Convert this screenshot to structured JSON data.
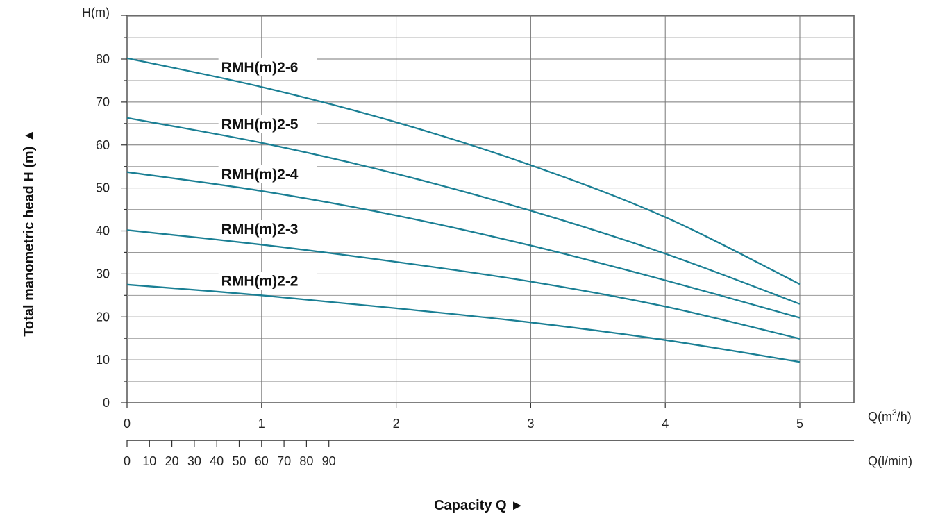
{
  "chart_data": {
    "type": "line",
    "ylabel": "Total manometric head H (m) ▲",
    "y_unit": "H(m)",
    "ylim": [
      0,
      90
    ],
    "y_ticks": [
      0,
      10,
      20,
      30,
      40,
      50,
      60,
      70,
      80
    ],
    "xlabel": "Capacity Q ►",
    "x_unit_m3h_prefix": "Q(m",
    "x_unit_m3h_sup": "3",
    "x_unit_m3h_suffix": "/h)",
    "x_ticks_m3h": [
      0,
      1,
      2,
      3,
      4,
      5
    ],
    "x_unit_lmin": "Q(l/min)",
    "x_ticks_lmin": [
      0,
      10,
      20,
      30,
      40,
      50,
      60,
      70,
      80,
      90
    ],
    "xlim_m3h": [
      0,
      5.4
    ],
    "grid": true,
    "line_color": "#1a7f94",
    "x": [
      0,
      1,
      2,
      3,
      4,
      5
    ],
    "series": [
      {
        "name": "RMH(m)2-6",
        "values": [
          80.2,
          73.5,
          65.3,
          55.3,
          43.2,
          27.6
        ]
      },
      {
        "name": "RMH(m)2-5",
        "values": [
          66.3,
          60.5,
          53.3,
          44.7,
          34.7,
          23.0
        ]
      },
      {
        "name": "RMH(m)2-4",
        "values": [
          53.7,
          49.3,
          43.6,
          36.6,
          28.5,
          19.8
        ]
      },
      {
        "name": "RMH(m)2-3",
        "values": [
          40.2,
          36.8,
          32.8,
          28.2,
          22.4,
          14.9
        ]
      },
      {
        "name": "RMH(m)2-2",
        "values": [
          27.5,
          25.0,
          22.0,
          18.7,
          14.6,
          9.5
        ]
      }
    ]
  }
}
